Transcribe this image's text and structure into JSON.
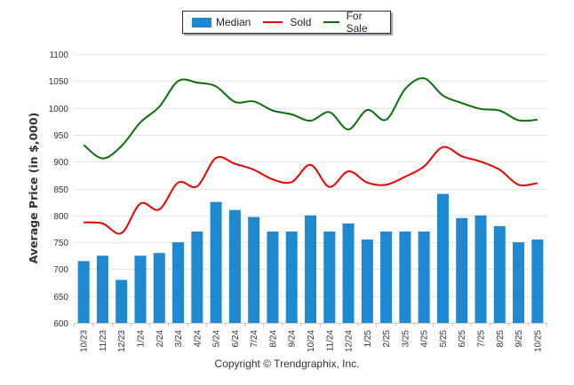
{
  "legend": {
    "median": "Median",
    "sold": "Sold",
    "for_sale": "For Sale"
  },
  "colors": {
    "median": "#1e88d0",
    "sold": "#ee0000",
    "for_sale": "#0a6e0a",
    "grid": "#e6e6e6"
  },
  "copyright": "Copyright © Trendgraphix, Inc.",
  "chart_data": {
    "type": "bar",
    "title": "",
    "xlabel": "",
    "ylabel": "Average Price (in $,000)",
    "ylim": [
      600,
      1100
    ],
    "yticks": [
      600,
      650,
      700,
      750,
      800,
      850,
      900,
      950,
      1000,
      1050,
      1100
    ],
    "grid": true,
    "legend_position": "top-center",
    "categories": [
      "10/23",
      "11/23",
      "12/23",
      "1/24",
      "2/24",
      "3/24",
      "4/24",
      "5/24",
      "6/24",
      "7/24",
      "8/24",
      "9/24",
      "10/24",
      "11/24",
      "12/24",
      "1/25",
      "2/25",
      "3/25",
      "4/25",
      "5/25",
      "6/25",
      "7/25",
      "8/25",
      "9/25",
      "10/25"
    ],
    "series": [
      {
        "name": "Median",
        "type": "bar",
        "values": [
          715,
          725,
          680,
          725,
          730,
          750,
          770,
          825,
          810,
          797,
          770,
          770,
          800,
          770,
          785,
          755,
          770,
          770,
          770,
          840,
          795,
          800,
          780,
          750,
          755
        ]
      },
      {
        "name": "Sold",
        "type": "line",
        "values": [
          787,
          785,
          767,
          822,
          811,
          861,
          854,
          907,
          896,
          885,
          867,
          862,
          894,
          853,
          882,
          861,
          857,
          872,
          891,
          927,
          910,
          900,
          885,
          857,
          860
        ]
      },
      {
        "name": "For Sale",
        "type": "line",
        "values": [
          931,
          906,
          929,
          973,
          1002,
          1050,
          1047,
          1040,
          1011,
          1012,
          995,
          988,
          976,
          992,
          960,
          996,
          978,
          1035,
          1055,
          1023,
          1009,
          998,
          995,
          977,
          978
        ]
      }
    ]
  }
}
